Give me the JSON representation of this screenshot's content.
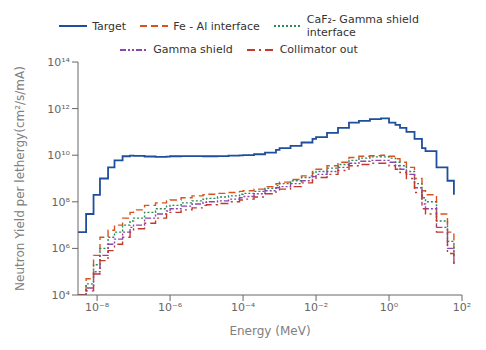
{
  "chart_data": {
    "type": "line",
    "title": "",
    "xlabel": "Energy (MeV)",
    "ylabel": "Neutron Yield per lethergy(cm²/s/mA)",
    "log": true,
    "grid": false,
    "legend": "top",
    "xlim": [
      3e-09,
      100
    ],
    "ylim": [
      10000.0,
      100000000000000.0
    ],
    "xticks": [
      {
        "value": 1e-08,
        "label": "10⁻⁸"
      },
      {
        "value": 1e-06,
        "label": "10⁻⁶"
      },
      {
        "value": 0.0001,
        "label": "10⁻⁴"
      },
      {
        "value": 0.01,
        "label": "10⁻²"
      },
      {
        "value": 1,
        "label": "10⁰"
      },
      {
        "value": 100,
        "label": "10²"
      }
    ],
    "yticks": [
      {
        "value": 10000.0,
        "label": "10⁴"
      },
      {
        "value": 1000000.0,
        "label": "10⁶"
      },
      {
        "value": 100000000.0,
        "label": "10⁸"
      },
      {
        "value": 10000000000.0,
        "label": "10¹⁰"
      },
      {
        "value": 1000000000000.0,
        "label": "10¹²"
      },
      {
        "value": 100000000000000.0,
        "label": "10¹⁴"
      }
    ],
    "x": [
      3e-09,
      5e-09,
      8e-09,
      1.2e-08,
      2e-08,
      3e-08,
      5e-08,
      8e-08,
      1e-07,
      2e-07,
      4e-07,
      8e-07,
      1e-06,
      2e-06,
      4e-06,
      8e-06,
      1e-05,
      2e-05,
      4e-05,
      8e-05,
      0.0001,
      0.0002,
      0.0004,
      0.0008,
      0.001,
      0.002,
      0.004,
      0.008,
      0.01,
      0.02,
      0.04,
      0.08,
      0.15,
      0.3,
      0.6,
      1.0,
      1.5,
      2.0,
      3.0,
      5.0,
      8.0,
      10.0,
      20.0,
      40.0,
      60.0
    ],
    "series": [
      {
        "name": "Target",
        "color": "#1f4e9c",
        "line_style": "solid",
        "values": [
          5000000.0,
          30000000.0,
          200000000.0,
          1000000000.0,
          3000000000.0,
          6000000000.0,
          9000000000.0,
          9500000000.0,
          9300000000.0,
          8800000000.0,
          8500000000.0,
          8700000000.0,
          9000000000.0,
          9200000000.0,
          9200000000.0,
          9000000000.0,
          9000000000.0,
          9200000000.0,
          9500000000.0,
          9800000000.0,
          10000000000.0,
          11000000000.0,
          13000000000.0,
          17000000000.0,
          20000000000.0,
          25000000000.0,
          35000000000.0,
          50000000000.0,
          60000000000.0,
          90000000000.0,
          150000000000.0,
          250000000000.0,
          300000000000.0,
          350000000000.0,
          380000000000.0,
          250000000000.0,
          200000000000.0,
          150000000000.0,
          100000000000.0,
          50000000000.0,
          20000000000.0,
          15000000000.0,
          3000000000.0,
          800000000.0,
          200000000.0
        ]
      },
      {
        "name": "Fe - Al interface",
        "color": "#d9531e",
        "line_style": "dashed",
        "values": [
          10000.0,
          50000.0,
          500000.0,
          3000000.0,
          6000000.0,
          10000000.0,
          20000000.0,
          35000000.0,
          45000000.0,
          70000000.0,
          90000000.0,
          110000000.0,
          120000000.0,
          150000000.0,
          180000000.0,
          200000000.0,
          210000000.0,
          230000000.0,
          250000000.0,
          280000000.0,
          300000000.0,
          350000000.0,
          450000000.0,
          600000000.0,
          700000000.0,
          900000000.0,
          1300000000.0,
          2000000000.0,
          2500000000.0,
          3500000000.0,
          5000000000.0,
          8000000000.0,
          9000000000.0,
          9500000000.0,
          10000000000.0,
          9000000000.0,
          7000000000.0,
          5000000000.0,
          3000000000.0,
          1000000000.0,
          300000000.0,
          200000000.0,
          30000000.0,
          5000000.0,
          1000000.0
        ]
      },
      {
        "name": "CaF₂- Gamma shield\ninterface",
        "color": "#2e8b57",
        "line_style": "dotted",
        "values": [
          10000.0,
          30000.0,
          200000.0,
          1000000.0,
          3000000.0,
          5000000.0,
          10000000.0,
          15000000.0,
          20000000.0,
          35000000.0,
          50000000.0,
          65000000.0,
          70000000.0,
          90000000.0,
          110000000.0,
          130000000.0,
          140000000.0,
          160000000.0,
          180000000.0,
          210000000.0,
          230000000.0,
          280000000.0,
          380000000.0,
          500000000.0,
          600000000.0,
          800000000.0,
          1100000000.0,
          1700000000.0,
          2000000000.0,
          2800000000.0,
          4000000000.0,
          6000000000.0,
          7500000000.0,
          8500000000.0,
          8500000000.0,
          7500000000.0,
          5000000000.0,
          3500000000.0,
          2000000000.0,
          600000000.0,
          150000000.0,
          100000000.0,
          15000000.0,
          2000000.0,
          500000.0
        ]
      },
      {
        "name": "Gamma shield",
        "color": "#8e44ad",
        "line_style": "dashdotdot",
        "values": [
          10000.0,
          20000.0,
          100000.0,
          500000.0,
          1500000.0,
          2500000.0,
          5000000.0,
          8000000.0,
          10000000.0,
          20000000.0,
          30000000.0,
          40000000.0,
          50000000.0,
          65000000.0,
          80000000.0,
          95000000.0,
          100000000.0,
          110000000.0,
          130000000.0,
          150000000.0,
          170000000.0,
          220000000.0,
          300000000.0,
          400000000.0,
          450000000.0,
          600000000.0,
          800000000.0,
          1200000000.0,
          1500000000.0,
          2000000000.0,
          3000000000.0,
          4500000000.0,
          5500000000.0,
          6000000000.0,
          6000000000.0,
          5000000000.0,
          3500000000.0,
          2500000000.0,
          1500000000.0,
          400000000.0,
          80000000.0,
          50000000.0,
          8000000.0,
          1000000.0,
          200000.0
        ]
      },
      {
        "name": "Collimator out",
        "color": "#c0392b",
        "line_style": "dashdot",
        "values": [
          10000.0,
          15000.0,
          80000.0,
          300000.0,
          800000.0,
          1500000.0,
          3000000.0,
          5000000.0,
          7000000.0,
          12000000.0,
          20000000.0,
          30000000.0,
          35000000.0,
          45000000.0,
          55000000.0,
          70000000.0,
          75000000.0,
          85000000.0,
          100000000.0,
          120000000.0,
          130000000.0,
          160000000.0,
          220000000.0,
          300000000.0,
          350000000.0,
          450000000.0,
          650000000.0,
          900000000.0,
          1100000000.0,
          1500000000.0,
          2200000000.0,
          3500000000.0,
          4000000000.0,
          4500000000.0,
          4500000000.0,
          3500000000.0,
          2500000000.0,
          1800000000.0,
          1000000000.0,
          250000000.0,
          50000000.0,
          30000000.0,
          5000000.0,
          600000.0,
          150000.0
        ]
      }
    ]
  }
}
